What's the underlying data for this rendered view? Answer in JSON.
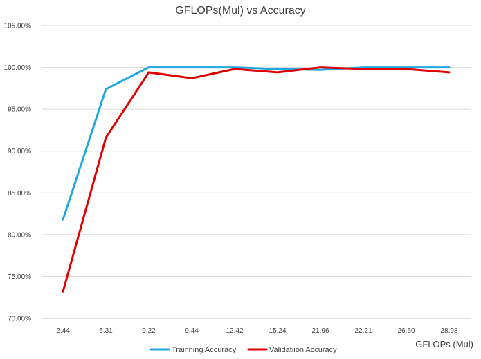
{
  "chart_data": {
    "type": "line",
    "title": "GFLOPs(Mul) vs Accuracy",
    "xlabel": "GFLOPs (Mul)",
    "ylabel": "",
    "categories": [
      "2.44",
      "6.31",
      "9.22",
      "9.44",
      "12.42",
      "15.24",
      "21.96",
      "22.21",
      "26.60",
      "28.98"
    ],
    "ylim": [
      70,
      105
    ],
    "yticks": [
      70,
      75,
      80,
      85,
      90,
      95,
      100,
      105
    ],
    "ytick_labels": [
      "70.00%",
      "75.00%",
      "80.00%",
      "85.00%",
      "90.00%",
      "95.00%",
      "100.00%",
      "105.00%"
    ],
    "grid": true,
    "legend_position": "bottom",
    "series": [
      {
        "name": "Trainning Accuracy",
        "color": "#1EA8DE",
        "values": [
          81.8,
          97.4,
          100.0,
          100.0,
          100.0,
          99.8,
          99.7,
          100.0,
          100.0,
          100.0
        ]
      },
      {
        "name": "Validatiion Accuracy",
        "color": "#E00000",
        "values": [
          73.2,
          91.6,
          99.4,
          98.7,
          99.8,
          99.4,
          100.0,
          99.8,
          99.8,
          99.4
        ]
      }
    ]
  }
}
